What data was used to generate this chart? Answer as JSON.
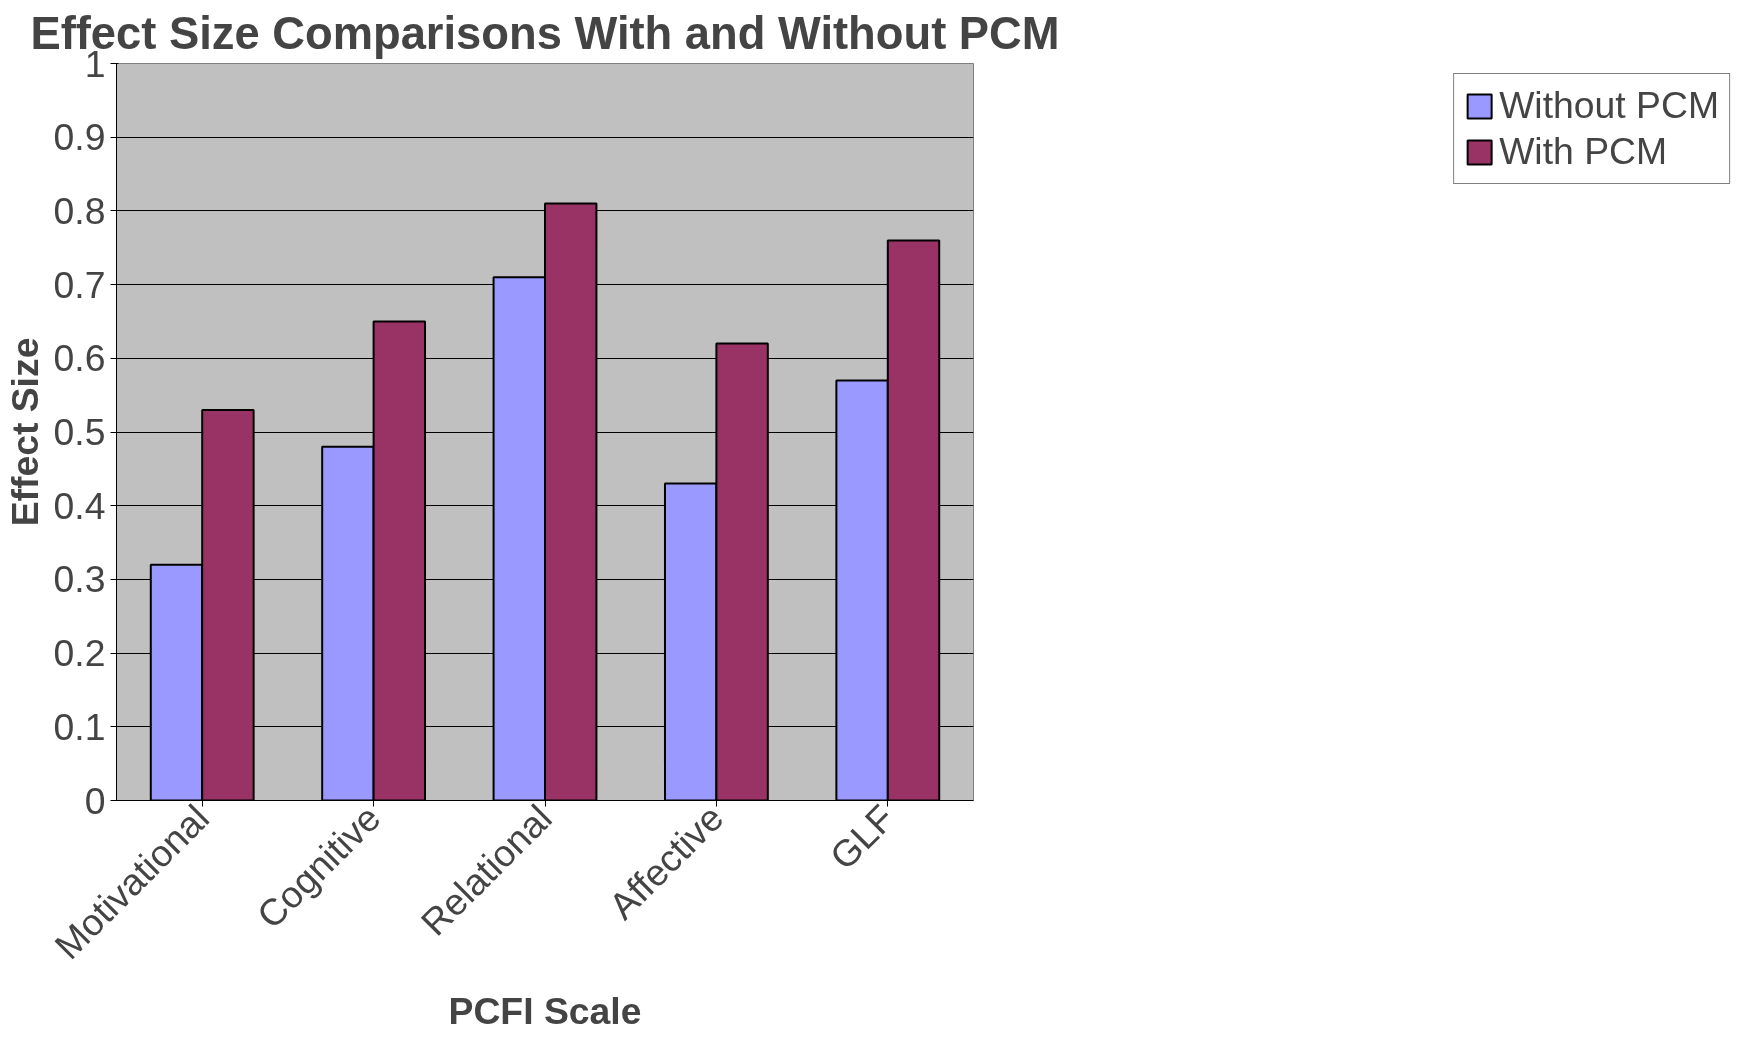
{
  "chart_data": {
    "type": "bar",
    "title": "Effect Size Comparisons With and Without PCM",
    "xlabel": "PCFI Scale",
    "ylabel": "Effect Size",
    "categories": [
      "Motivational",
      "Cognitive",
      "Relational",
      "Affective",
      "GLF"
    ],
    "series": [
      {
        "name": "Without PCM",
        "color": "#9999ff",
        "values": [
          0.32,
          0.48,
          0.71,
          0.43,
          0.57
        ]
      },
      {
        "name": "With PCM",
        "color": "#993366",
        "values": [
          0.53,
          0.65,
          0.81,
          0.62,
          0.76
        ]
      }
    ],
    "ylim": [
      0,
      1
    ],
    "yticks": [
      0,
      0.1,
      0.2,
      0.3,
      0.4,
      0.5,
      0.6,
      0.7,
      0.8,
      0.9,
      1
    ],
    "grid": "y",
    "legend": "right"
  }
}
